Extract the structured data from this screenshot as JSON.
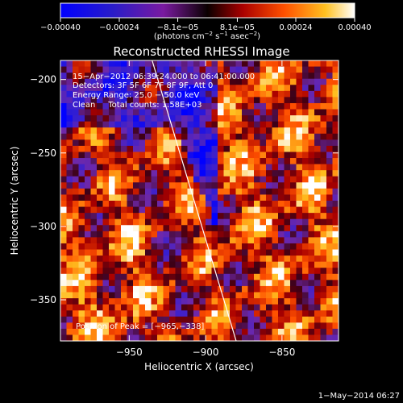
{
  "chart_data": {
    "type": "heatmap",
    "title": "Reconstructed RHESSI Image",
    "xlabel": "Heliocentric X (arcsec)",
    "ylabel": "Heliocentric Y (arcsec)",
    "xlim": [
      -995,
      -813
    ],
    "ylim": [
      -378,
      -187
    ],
    "x_ticks": [
      -950,
      -900,
      -850
    ],
    "x_tick_labels": [
      "−950",
      "−900",
      "−850"
    ],
    "y_ticks": [
      -200,
      -250,
      -300,
      -350
    ],
    "y_tick_labels": [
      "−200",
      "−250",
      "−300",
      "−350"
    ],
    "colorbar": {
      "vmin": -0.0004,
      "vmax": 0.0004,
      "ticks": [
        -0.0004,
        -0.00024,
        -8.1e-05,
        8.1e-05,
        0.00024,
        0.0004
      ],
      "tick_labels": [
        "−0.00040",
        "−0.00024",
        "−8.1e−05",
        "8.1e−05",
        "0.00024",
        "0.00040"
      ],
      "units_main": "(photons cm",
      "units_sup1": "−2",
      "units_mid": " s",
      "units_sup2": "−1",
      "units_end": " asec",
      "units_sup3": "−2",
      "units_close": ")"
    },
    "annotations": [
      "15−Apr−2012 06:39:24.000 to 06:41:00.000",
      "Detectors: 3F 5F 6F 7F 8F 9F, Att 0",
      "Energy Range: 25.0 − 50.0 keV",
      "Clean     Total counts: 1.58E+03"
    ],
    "peak_label": "Position of Peak = [−965,−338]",
    "peak_position": [
      -965,
      -338
    ],
    "limb_line": [
      [
        -935,
        -187
      ],
      [
        -880,
        -378
      ]
    ],
    "date_stamp": "1−May−2014 06:27"
  }
}
